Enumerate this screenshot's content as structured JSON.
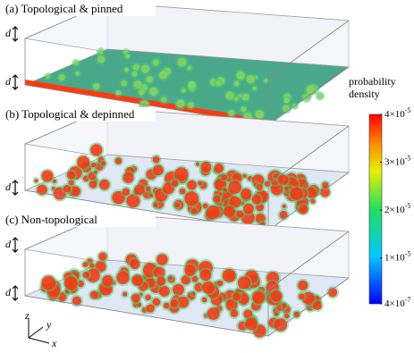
{
  "panels": [
    {
      "label": "(a) Topological & pinned",
      "d_labels": [
        "d",
        "d"
      ]
    },
    {
      "label": "(b) Topological & depinned",
      "d_labels": [
        "d"
      ]
    },
    {
      "label": "(c) Non-topological",
      "d_labels": [
        "d",
        "d"
      ]
    }
  ],
  "axes_labels": {
    "z": "z",
    "y": "y",
    "x": "x"
  },
  "colorbar": {
    "title": [
      "probability",
      "density"
    ],
    "range": [
      4e-07,
      4e-05
    ],
    "ticks": [
      {
        "value": 4e-05,
        "base": "4×10",
        "exponent": "-5"
      },
      {
        "value": 3e-05,
        "base": "3×10",
        "exponent": "-5"
      },
      {
        "value": 2e-05,
        "base": "2×10",
        "exponent": "-5"
      },
      {
        "value": 1e-05,
        "base": "1×10",
        "exponent": "-5"
      },
      {
        "value": 4e-07,
        "base": "4×10",
        "exponent": "-7"
      }
    ]
  }
}
